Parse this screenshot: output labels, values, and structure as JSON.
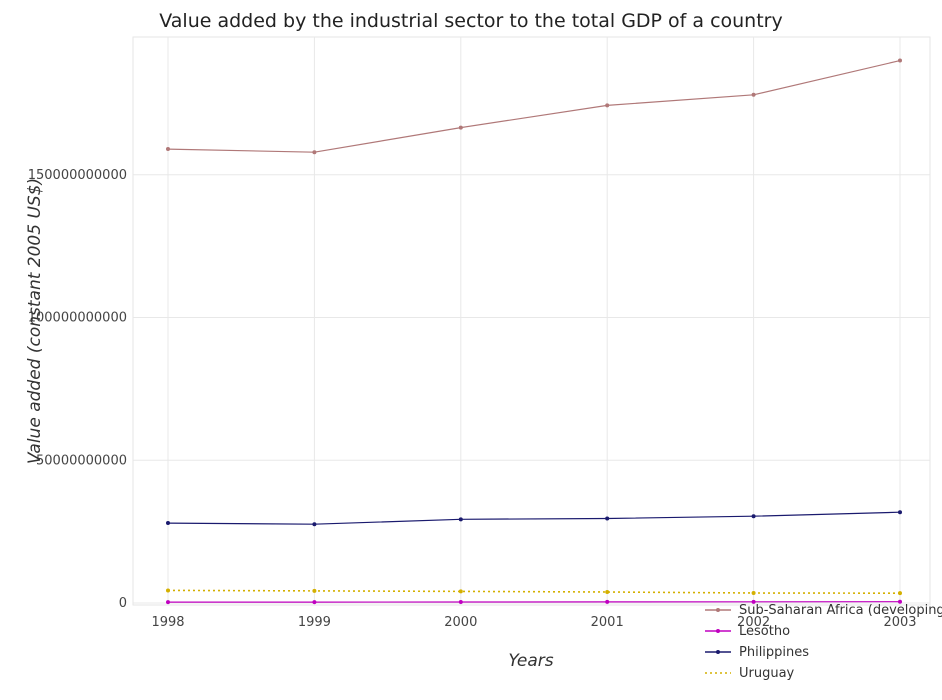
{
  "chart_data": {
    "type": "line",
    "title": "Value added by the industrial sector to the total GDP of a country",
    "xlabel": "Years",
    "ylabel": "Value added (constant 2005 US$)",
    "categories": [
      "1998",
      "1999",
      "2000",
      "2001",
      "2002",
      "2003"
    ],
    "ylim": [
      0,
      200000000000
    ],
    "yticks": [
      0,
      50000000000,
      100000000000,
      150000000000
    ],
    "ytick_labels": [
      "0",
      "50000000000",
      "100000000000",
      "150000000000"
    ],
    "grid": true,
    "legend_position": "bottom-right",
    "series": [
      {
        "name": "Sub-Saharan Africa (developing only)",
        "color": "#b07878",
        "style": "dot-line",
        "values": [
          159000000000,
          157900000000,
          166500000000,
          174300000000,
          178000000000,
          190000000000
        ]
      },
      {
        "name": "Lesotho",
        "color": "#c000c0",
        "style": "dot-line",
        "values": [
          310000000,
          320000000,
          350000000,
          380000000,
          410000000,
          440000000
        ]
      },
      {
        "name": "Philippines",
        "color": "#1a1a6e",
        "style": "dot-line",
        "values": [
          28000000000,
          27600000000,
          29300000000,
          29600000000,
          30400000000,
          31800000000
        ]
      },
      {
        "name": "Uruguay",
        "color": "#d4b000",
        "style": "dotted",
        "values": [
          4400000000,
          4250000000,
          4050000000,
          3850000000,
          3500000000,
          3450000000
        ]
      }
    ]
  }
}
